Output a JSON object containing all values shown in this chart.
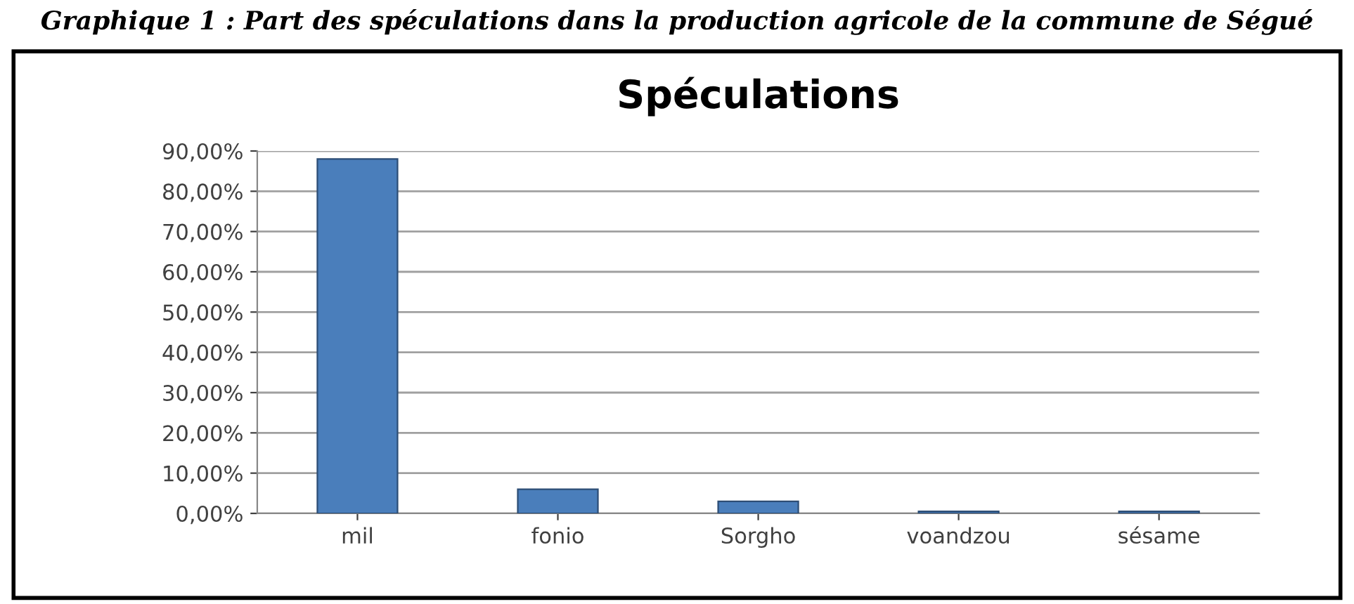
{
  "chart_data": {
    "type": "bar",
    "title": "Spéculations",
    "annotations": [
      "Graphique 1 : Part des spéculations dans la production agricole de la commune de Ségué"
    ],
    "categories": [
      "mil",
      "fonio",
      "Sorgho",
      "voandzou",
      "sésame"
    ],
    "values": [
      88,
      6,
      3,
      0.5,
      0.5
    ],
    "color": "#4a7ebb",
    "ylim": [
      0,
      90
    ],
    "yticks": [
      {
        "value": 0,
        "label": "0,00%"
      },
      {
        "value": 10,
        "label": "10,00%"
      },
      {
        "value": 20,
        "label": "20,00%"
      },
      {
        "value": 30,
        "label": "30,00%"
      },
      {
        "value": 40,
        "label": "40,00%"
      },
      {
        "value": 50,
        "label": "50,00%"
      },
      {
        "value": 60,
        "label": "60,00%"
      },
      {
        "value": 70,
        "label": "70,00%"
      },
      {
        "value": 80,
        "label": "80,00%"
      },
      {
        "value": 90,
        "label": "90,00%"
      }
    ],
    "grid": "y"
  }
}
